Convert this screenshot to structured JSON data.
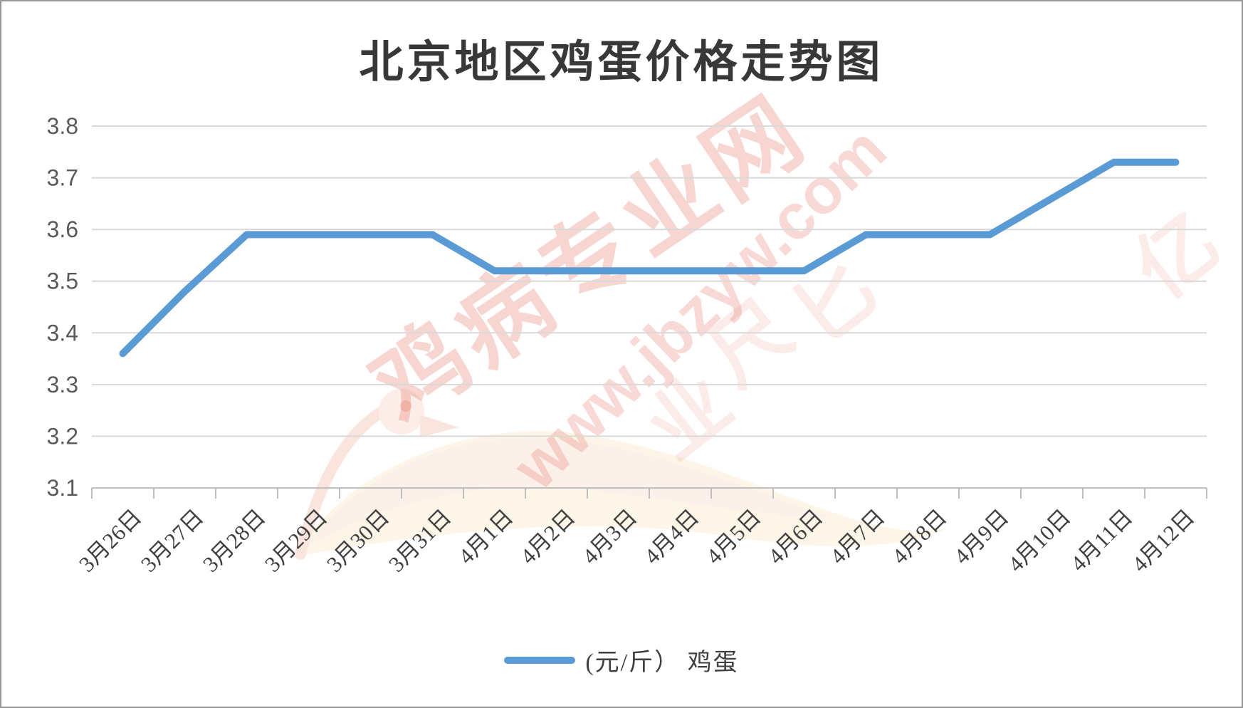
{
  "title": "北京地区鸡蛋价格走势图",
  "legend": {
    "label": "(元/斤） 鸡蛋"
  },
  "chart_data": {
    "type": "line",
    "title": "北京地区鸡蛋价格走势图",
    "categories": [
      "3月26日",
      "3月27日",
      "3月28日",
      "3月29日",
      "3月30日",
      "3月31日",
      "4月1日",
      "4月2日",
      "4月3日",
      "4月4日",
      "4月5日",
      "4月6日",
      "4月7日",
      "4月8日",
      "4月9日",
      "4月10日",
      "4月11日",
      "4月12日"
    ],
    "series": [
      {
        "name": "(元/斤） 鸡蛋",
        "values": [
          3.36,
          3.48,
          3.59,
          3.59,
          3.59,
          3.59,
          3.52,
          3.52,
          3.52,
          3.52,
          3.52,
          3.52,
          3.59,
          3.59,
          3.59,
          3.66,
          3.73,
          3.73
        ]
      }
    ],
    "xlabel": "",
    "ylabel": "",
    "ylim": [
      3.1,
      3.8
    ],
    "yticks": [
      "3.8",
      "3.7",
      "3.6",
      "3.5",
      "3.4",
      "3.3",
      "3.2",
      "3.1"
    ],
    "grid": "horizontal",
    "legend_position": "bottom",
    "line_color": "#5B9BD5"
  },
  "watermark": {
    "brand": "鸡病专业网",
    "url": "www.jbzyw.com",
    "script_chars": [
      "业",
      "尺",
      "匕",
      "亿"
    ],
    "color": "#E2624E"
  },
  "colors": {
    "line": "#5B9BD5",
    "gridline": "#D9D9D9",
    "axis": "#BFBFBF",
    "ytick_label": "#595959",
    "xtick_label": "#3F3F3F",
    "title_text": "#383838"
  }
}
